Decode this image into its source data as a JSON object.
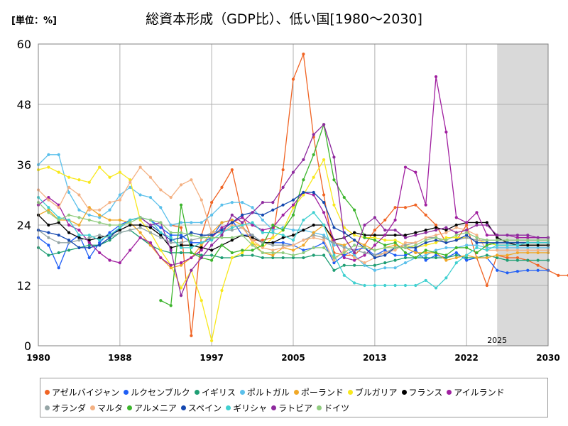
{
  "unit_label": "[単位：%]",
  "title": "総資本形成（GDP比）、低い国[1980～2030]",
  "chart_data": {
    "type": "line",
    "title": "総資本形成（GDP比）、低い国[1980～2030]",
    "ylabel": "[単位：%]",
    "xlabel": "",
    "xlim": [
      1980,
      2030
    ],
    "ylim": [
      0,
      60
    ],
    "x_ticks": [
      1980,
      1988,
      1997,
      2005,
      2013,
      2022,
      2030
    ],
    "y_ticks": [
      0,
      12,
      24,
      36,
      48,
      60
    ],
    "forecast_start": 2025,
    "forecast_label": "2025",
    "grid": true,
    "legend_position": "bottom",
    "series": [
      {
        "name": "アゼルバイジャン",
        "color": "#f06424",
        "start": 1993,
        "values": [
          24.0,
          23.5,
          2.0,
          22.0,
          28.5,
          31.5,
          35.0,
          26.0,
          21.0,
          21.0,
          21.5,
          35.0,
          53.0,
          58.0,
          41.5,
          30.0,
          18.5,
          18.0,
          18.0,
          20.0,
          23.0,
          25.0,
          27.5,
          27.5,
          28.0,
          26.0,
          24.0,
          20.5,
          21.0,
          24.0,
          17.5,
          12.0,
          18.0,
          17.5,
          17.5,
          17.0,
          16.0,
          15.0,
          14.0,
          14.0,
          14.0
        ]
      },
      {
        "name": "ルクセンブルク",
        "color": "#1f5ef5",
        "start": 1980,
        "values": [
          21.5,
          20.0,
          15.5,
          20.5,
          22.0,
          17.5,
          20.5,
          22.5,
          24.0,
          25.0,
          25.5,
          25.0,
          23.5,
          22.0,
          22.0,
          20.5,
          20.5,
          21.5,
          24.5,
          25.0,
          22.0,
          22.0,
          20.5,
          20.5,
          20.5,
          20.0,
          19.0,
          19.5,
          20.5,
          16.5,
          18.0,
          19.0,
          19.5,
          18.0,
          19.0,
          18.0,
          18.0,
          19.0,
          17.0,
          18.0,
          17.5,
          18.5,
          17.0,
          17.5,
          17.5,
          15.0,
          14.5,
          14.8,
          15.0,
          15.0,
          15.0
        ]
      },
      {
        "name": "イギリス",
        "color": "#1f9e74",
        "start": 1980,
        "values": [
          19.5,
          18.0,
          18.5,
          19.0,
          19.5,
          20.0,
          20.0,
          21.0,
          22.5,
          23.0,
          21.5,
          20.0,
          19.0,
          18.5,
          18.5,
          18.5,
          18.0,
          18.0,
          17.5,
          17.5,
          18.0,
          18.0,
          17.5,
          17.5,
          17.5,
          17.5,
          17.5,
          18.0,
          18.0,
          15.0,
          16.0,
          16.0,
          16.0,
          16.0,
          16.5,
          17.0,
          17.5,
          17.5,
          17.5,
          17.5,
          17.5,
          18.0,
          17.5,
          17.5,
          18.0,
          17.5,
          17.0,
          17.0,
          17.0,
          17.0,
          17.0
        ]
      },
      {
        "name": "ポルトガル",
        "color": "#5bc0eb",
        "start": 1980,
        "values": [
          36.0,
          38.0,
          38.0,
          30.5,
          27.0,
          26.0,
          25.5,
          27.0,
          30.0,
          31.5,
          30.0,
          29.5,
          27.5,
          24.0,
          24.5,
          24.5,
          24.5,
          26.0,
          28.0,
          28.5,
          28.5,
          27.5,
          25.0,
          23.0,
          23.5,
          23.0,
          23.0,
          22.5,
          22.0,
          20.0,
          20.0,
          18.0,
          16.0,
          15.0,
          15.5,
          15.5,
          16.5,
          17.5,
          18.0,
          19.0,
          19.5,
          19.5,
          20.0,
          20.0,
          19.5,
          19.5,
          19.5,
          19.5,
          19.5,
          19.5,
          19.5
        ]
      },
      {
        "name": "ポーランド",
        "color": "#f0a828",
        "start": 1980,
        "values": [
          26.0,
          27.0,
          25.0,
          25.0,
          24.0,
          27.5,
          26.0,
          25.0,
          25.0,
          24.5,
          22.5,
          20.0,
          17.5,
          15.5,
          16.0,
          17.5,
          20.0,
          22.5,
          24.5,
          25.0,
          24.0,
          20.5,
          18.5,
          18.0,
          19.5,
          19.0,
          20.0,
          22.5,
          24.0,
          20.5,
          20.0,
          21.0,
          20.0,
          19.0,
          19.5,
          20.0,
          19.5,
          18.5,
          18.5,
          18.5,
          17.0,
          17.5,
          18.0,
          17.5,
          17.5,
          18.0,
          18.0,
          18.5,
          18.5,
          18.5,
          18.5
        ]
      },
      {
        "name": "ブルガリア",
        "color": "#f8e81c",
        "start": 1980,
        "values": [
          35.0,
          35.5,
          34.5,
          33.5,
          33.0,
          32.5,
          35.5,
          33.5,
          34.5,
          33.0,
          25.0,
          22.5,
          19.0,
          16.0,
          11.5,
          15.0,
          9.0,
          1.0,
          11.0,
          17.5,
          18.5,
          20.5,
          19.5,
          21.5,
          23.0,
          27.5,
          30.0,
          33.5,
          37.0,
          28.0,
          23.5,
          22.0,
          21.5,
          21.5,
          21.0,
          21.0,
          20.0,
          19.5,
          20.0,
          20.5,
          21.5,
          21.5,
          21.5,
          21.0,
          20.5,
          20.0,
          20.0,
          20.0,
          20.0,
          20.0,
          20.0
        ]
      },
      {
        "name": "フランス",
        "color": "#000000",
        "start": 1980,
        "values": [
          26.0,
          24.0,
          24.5,
          22.5,
          21.5,
          21.0,
          21.5,
          22.0,
          23.0,
          24.0,
          24.0,
          23.5,
          22.0,
          19.5,
          20.0,
          20.0,
          19.5,
          19.0,
          20.0,
          21.0,
          22.0,
          21.5,
          20.5,
          20.5,
          21.5,
          22.0,
          23.0,
          24.0,
          24.0,
          21.0,
          21.5,
          22.5,
          22.0,
          22.0,
          22.0,
          22.0,
          22.0,
          22.5,
          23.0,
          23.5,
          23.0,
          24.0,
          24.5,
          24.5,
          24.5,
          21.5,
          20.5,
          20.0,
          20.0,
          20.0,
          20.0
        ]
      },
      {
        "name": "アイルランド",
        "color": "#a020a0",
        "start": 1980,
        "values": [
          28.0,
          29.5,
          28.0,
          24.0,
          23.0,
          20.5,
          18.5,
          17.0,
          16.5,
          19.0,
          21.5,
          20.5,
          17.5,
          16.0,
          16.5,
          17.5,
          19.0,
          21.5,
          23.5,
          24.5,
          25.5,
          24.0,
          23.0,
          23.5,
          26.0,
          28.0,
          30.5,
          30.0,
          26.5,
          21.0,
          17.5,
          17.0,
          18.0,
          20.0,
          22.0,
          25.0,
          35.5,
          34.5,
          28.0,
          53.5,
          42.5,
          25.5,
          24.5,
          26.5,
          22.0,
          22.0,
          22.0,
          21.5,
          21.5,
          21.5,
          21.5
        ]
      },
      {
        "name": "オランダ",
        "color": "#95a5a6",
        "start": 1980,
        "values": [
          23.0,
          21.5,
          20.5,
          20.5,
          21.0,
          21.5,
          22.0,
          21.5,
          22.5,
          23.0,
          23.5,
          22.5,
          21.5,
          20.5,
          20.5,
          21.0,
          21.5,
          22.5,
          23.0,
          23.0,
          23.5,
          22.0,
          20.5,
          20.0,
          20.0,
          20.0,
          21.0,
          22.0,
          21.5,
          20.5,
          19.5,
          19.0,
          18.5,
          18.0,
          18.5,
          19.5,
          20.0,
          20.5,
          21.5,
          21.5,
          20.5,
          21.0,
          21.5,
          21.0,
          21.0,
          21.0,
          21.0,
          21.0,
          21.0,
          21.0,
          21.0
        ]
      },
      {
        "name": "マルタ",
        "color": "#f4b183",
        "start": 1980,
        "values": [
          31.0,
          29.0,
          27.5,
          31.5,
          30.0,
          27.0,
          27.0,
          28.5,
          29.0,
          32.5,
          35.5,
          33.5,
          31.0,
          29.5,
          32.0,
          33.0,
          29.0,
          22.5,
          22.5,
          24.0,
          23.5,
          21.0,
          19.5,
          19.0,
          19.5,
          20.0,
          21.0,
          21.5,
          21.0,
          17.0,
          19.0,
          17.5,
          16.5,
          17.5,
          18.5,
          19.0,
          20.5,
          20.5,
          21.5,
          22.0,
          22.5,
          23.5,
          23.0,
          22.0,
          19.0,
          19.0,
          19.0,
          19.0,
          19.0,
          19.0,
          19.0
        ]
      },
      {
        "name": "アルメニア",
        "color": "#3db52d",
        "start": 1992,
        "values": [
          9.0,
          8.0,
          28.0,
          18.5,
          17.5,
          17.0,
          20.0,
          18.5,
          19.0,
          19.0,
          20.0,
          24.0,
          23.0,
          26.0,
          33.0,
          38.0,
          44.0,
          33.0,
          29.5,
          27.0,
          21.5,
          21.0,
          20.0,
          20.5,
          18.5,
          17.5,
          19.0,
          18.5,
          18.0,
          19.5,
          19.5,
          18.5,
          20.0,
          20.5,
          20.5,
          20.5,
          20.5,
          20.5,
          20.5
        ]
      },
      {
        "name": "スペイン",
        "color": "#1448b0",
        "start": 1980,
        "values": [
          23.0,
          22.5,
          22.0,
          21.0,
          19.5,
          19.5,
          20.0,
          21.5,
          23.5,
          25.0,
          25.5,
          24.0,
          22.5,
          21.0,
          21.5,
          22.5,
          22.0,
          22.0,
          23.0,
          24.5,
          26.0,
          26.5,
          26.0,
          27.0,
          28.0,
          29.0,
          30.5,
          30.5,
          28.5,
          23.5,
          22.5,
          21.0,
          19.5,
          17.5,
          18.0,
          19.5,
          19.5,
          19.5,
          20.5,
          21.0,
          20.5,
          21.0,
          22.0,
          20.5,
          20.5,
          20.5,
          20.5,
          20.5,
          20.5,
          20.5,
          20.5
        ]
      },
      {
        "name": "ギリシャ",
        "color": "#40d0d0",
        "start": 1980,
        "values": [
          29.5,
          27.5,
          25.5,
          25.0,
          22.0,
          22.0,
          21.0,
          22.0,
          23.5,
          25.0,
          25.5,
          25.0,
          22.5,
          21.5,
          19.5,
          19.5,
          20.5,
          21.0,
          22.5,
          23.5,
          24.0,
          24.5,
          22.5,
          22.5,
          22.0,
          21.0,
          25.0,
          26.5,
          24.0,
          18.0,
          14.0,
          12.5,
          12.0,
          12.0,
          12.0,
          12.0,
          12.0,
          12.0,
          13.0,
          11.5,
          13.5,
          16.5,
          18.0,
          19.5,
          19.0,
          20.0,
          20.0,
          20.0,
          20.5,
          20.5,
          20.5
        ]
      },
      {
        "name": "ラトビア",
        "color": "#8e2a9e",
        "start": 1990,
        "values": [
          25.5,
          24.0,
          24.5,
          19.0,
          10.0,
          15.0,
          17.5,
          20.0,
          22.0,
          26.0,
          24.5,
          26.5,
          28.5,
          28.5,
          31.5,
          34.5,
          37.0,
          42.0,
          44.0,
          37.5,
          21.5,
          18.5,
          24.0,
          25.5,
          23.0,
          23.0,
          21.5,
          22.0,
          22.5,
          23.0,
          23.5,
          22.5,
          23.0,
          24.0,
          24.0,
          22.0,
          22.0,
          22.0,
          22.0,
          21.5,
          21.5
        ]
      },
      {
        "name": "ドイツ",
        "color": "#90cc7f",
        "start": 1980,
        "values": [
          28.5,
          26.5,
          25.0,
          26.0,
          25.5,
          25.0,
          24.5,
          24.0,
          24.0,
          24.5,
          25.5,
          25.0,
          24.5,
          22.5,
          22.5,
          22.0,
          21.5,
          21.5,
          21.5,
          21.5,
          22.0,
          20.0,
          18.5,
          18.5,
          18.5,
          18.0,
          18.5,
          19.5,
          19.5,
          17.5,
          18.5,
          20.0,
          19.5,
          19.0,
          19.5,
          19.5,
          19.5,
          20.0,
          21.0,
          21.5,
          21.0,
          22.0,
          22.5,
          21.5,
          21.0,
          21.0,
          21.0,
          21.0,
          21.0,
          21.0,
          21.0
        ]
      }
    ]
  }
}
